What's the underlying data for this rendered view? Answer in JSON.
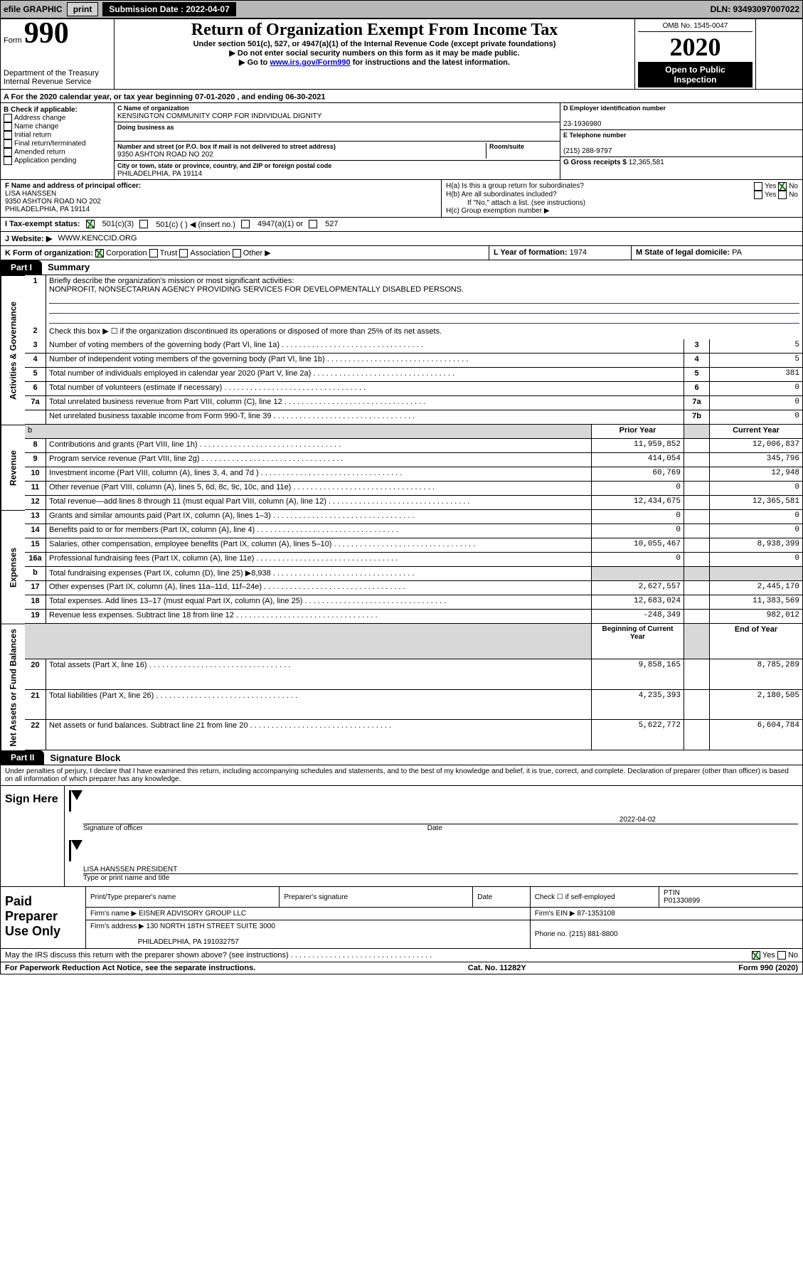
{
  "topbar": {
    "efile": "efile GRAPHIC",
    "print": "print",
    "subLabel": "Submission Date : 2022-04-07",
    "dln": "DLN: 93493097007022"
  },
  "header": {
    "formWord": "Form",
    "formNum": "990",
    "dept1": "Department of the Treasury",
    "dept2": "Internal Revenue Service",
    "title": "Return of Organization Exempt From Income Tax",
    "sub1": "Under section 501(c), 527, or 4947(a)(1) of the Internal Revenue Code (except private foundations)",
    "sub2": "Do not enter social security numbers on this form as it may be made public.",
    "sub3a": "Go to ",
    "sub3link": "www.irs.gov/Form990",
    "sub3b": " for instructions and the latest information.",
    "omb": "OMB No. 1545-0047",
    "year": "2020",
    "inspect1": "Open to Public",
    "inspect2": "Inspection"
  },
  "periodLine": "For the 2020 calendar year, or tax year beginning 07-01-2020   , and ending 06-30-2021",
  "boxB": {
    "title": "B Check if applicable:",
    "opts": [
      "Address change",
      "Name change",
      "Initial return",
      "Final return/terminated",
      "Amended return",
      "Application pending"
    ]
  },
  "boxC": {
    "nameLbl": "C Name of organization",
    "name": "KENSINGTON COMMUNITY CORP FOR INDIVIDUAL DIGNITY",
    "dbaLbl": "Doing business as",
    "addrLbl": "Number and street (or P.O. box if mail is not delivered to street address)",
    "roomLbl": "Room/suite",
    "addr": "9350 ASHTON ROAD NO 202",
    "cityLbl": "City or town, state or province, country, and ZIP or foreign postal code",
    "city": "PHILADELPHIA, PA  19114"
  },
  "boxD": {
    "lbl": "D Employer identification number",
    "val": "23-1936980"
  },
  "boxE": {
    "lbl": "E Telephone number",
    "val": "(215) 288-9797"
  },
  "boxG": {
    "lbl": "G Gross receipts $",
    "val": "12,365,581"
  },
  "boxF": {
    "lbl": "F  Name and address of principal officer:",
    "name": "LISA HANSSEN",
    "addr1": "9350 ASHTON ROAD NO 202",
    "addr2": "PHILADELPHIA, PA  19114"
  },
  "boxH": {
    "ha": "H(a)  Is this a group return for subordinates?",
    "hb": "H(b)  Are all subordinates included?",
    "hbNote": "If \"No,\" attach a list. (see instructions)",
    "hc": "H(c)  Group exemption number ▶",
    "yes": "Yes",
    "no": "No"
  },
  "rowI": {
    "lbl": "I    Tax-exempt status:",
    "o1": "501(c)(3)",
    "o2": "501(c) (   ) ◀ (insert no.)",
    "o3": "4947(a)(1) or",
    "o4": "527"
  },
  "rowJ": {
    "lbl": "J   Website: ▶",
    "val": "WWW.KENCCID.ORG"
  },
  "rowK": {
    "lbl": "K Form of organization:",
    "o1": "Corporation",
    "o2": "Trust",
    "o3": "Association",
    "o4": "Other ▶"
  },
  "rowL": {
    "lbl": "L Year of formation:",
    "val": "1974"
  },
  "rowM": {
    "lbl": "M State of legal domicile:",
    "val": "PA"
  },
  "part1": {
    "tab": "Part I",
    "title": "Summary"
  },
  "summary": {
    "q1": "Briefly describe the organization's mission or most significant activities:",
    "q1ans": "NONPROFIT, NONSECTARIAN AGENCY PROVIDING SERVICES FOR DEVELOPMENTALLY DISABLED PERSONS.",
    "q2": "Check this box ▶ ☐  if the organization discontinued its operations or disposed of more than 25% of its net assets.",
    "rows": [
      {
        "n": "3",
        "t": "Number of voting members of the governing body (Part VI, line 1a)",
        "c": "3",
        "v": "5"
      },
      {
        "n": "4",
        "t": "Number of independent voting members of the governing body (Part VI, line 1b)",
        "c": "4",
        "v": "5"
      },
      {
        "n": "5",
        "t": "Total number of individuals employed in calendar year 2020 (Part V, line 2a)",
        "c": "5",
        "v": "381"
      },
      {
        "n": "6",
        "t": "Total number of volunteers (estimate if necessary)",
        "c": "6",
        "v": "0"
      },
      {
        "n": "7a",
        "t": "Total unrelated business revenue from Part VIII, column (C), line 12",
        "c": "7a",
        "v": "0"
      },
      {
        "n": "",
        "t": "Net unrelated business taxable income from Form 990-T, line 39",
        "c": "7b",
        "v": "0"
      }
    ],
    "hdrPrior": "Prior Year",
    "hdrCurr": "Current Year",
    "rev": [
      {
        "n": "8",
        "t": "Contributions and grants (Part VIII, line 1h)",
        "p": "11,959,852",
        "c": "12,006,837"
      },
      {
        "n": "9",
        "t": "Program service revenue (Part VIII, line 2g)",
        "p": "414,054",
        "c": "345,796"
      },
      {
        "n": "10",
        "t": "Investment income (Part VIII, column (A), lines 3, 4, and 7d )",
        "p": "60,769",
        "c": "12,948"
      },
      {
        "n": "11",
        "t": "Other revenue (Part VIII, column (A), lines 5, 6d, 8c, 9c, 10c, and 11e)",
        "p": "0",
        "c": "0"
      },
      {
        "n": "12",
        "t": "Total revenue—add lines 8 through 11 (must equal Part VIII, column (A), line 12)",
        "p": "12,434,675",
        "c": "12,365,581"
      }
    ],
    "exp": [
      {
        "n": "13",
        "t": "Grants and similar amounts paid (Part IX, column (A), lines 1–3)",
        "p": "0",
        "c": "0"
      },
      {
        "n": "14",
        "t": "Benefits paid to or for members (Part IX, column (A), line 4)",
        "p": "0",
        "c": "0"
      },
      {
        "n": "15",
        "t": "Salaries, other compensation, employee benefits (Part IX, column (A), lines 5–10)",
        "p": "10,055,467",
        "c": "8,938,399"
      },
      {
        "n": "16a",
        "t": "Professional fundraising fees (Part IX, column (A), line 11e)",
        "p": "0",
        "c": "0"
      },
      {
        "n": "b",
        "t": "Total fundraising expenses (Part IX, column (D), line 25) ▶8,938",
        "p": "",
        "c": "",
        "shade": true
      },
      {
        "n": "17",
        "t": "Other expenses (Part IX, column (A), lines 11a–11d, 11f–24e)",
        "p": "2,627,557",
        "c": "2,445,170"
      },
      {
        "n": "18",
        "t": "Total expenses. Add lines 13–17 (must equal Part IX, column (A), line 25)",
        "p": "12,683,024",
        "c": "11,383,569"
      },
      {
        "n": "19",
        "t": "Revenue less expenses. Subtract line 18 from line 12",
        "p": "-248,349",
        "c": "982,012"
      }
    ],
    "hdrBeg": "Beginning of Current Year",
    "hdrEnd": "End of Year",
    "net": [
      {
        "n": "20",
        "t": "Total assets (Part X, line 16)",
        "p": "9,858,165",
        "c": "8,785,289"
      },
      {
        "n": "21",
        "t": "Total liabilities (Part X, line 26)",
        "p": "4,235,393",
        "c": "2,180,505"
      },
      {
        "n": "22",
        "t": "Net assets or fund balances. Subtract line 21 from line 20",
        "p": "5,622,772",
        "c": "6,604,784"
      }
    ],
    "vlab1": "Activities & Governance",
    "vlab2": "Revenue",
    "vlab3": "Expenses",
    "vlab4": "Net Assets or Fund Balances"
  },
  "part2": {
    "tab": "Part II",
    "title": "Signature Block"
  },
  "penalty": "Under penalties of perjury, I declare that I have examined this return, including accompanying schedules and statements, and to the best of my knowledge and belief, it is true, correct, and complete. Declaration of preparer (other than officer) is based on all information of which preparer has any knowledge.",
  "sign": {
    "lbl": "Sign Here",
    "sigOf": "Signature of officer",
    "date": "Date",
    "dateVal": "2022-04-02",
    "name": "LISA HANSSEN  PRESIDENT",
    "typeLbl": "Type or print name and title"
  },
  "prep": {
    "lbl": "Paid Preparer Use Only",
    "h1": "Print/Type preparer's name",
    "h2": "Preparer's signature",
    "h3": "Date",
    "h4": "Check ☐ if self-employed",
    "h5": "PTIN",
    "ptin": "P01330899",
    "firmLbl": "Firm's name    ▶",
    "firm": "EISNER ADVISORY GROUP LLC",
    "einLbl": "Firm's EIN ▶",
    "ein": "87-1353108",
    "addrLbl": "Firm's address ▶",
    "addr1": "130 NORTH 18TH STREET SUITE 3000",
    "addr2": "PHILADELPHIA, PA  191032757",
    "phoneLbl": "Phone no.",
    "phone": "(215) 881-8800"
  },
  "discuss": "May the IRS discuss this return with the preparer shown above? (see instructions)",
  "footer": {
    "l": "For Paperwork Reduction Act Notice, see the separate instructions.",
    "c": "Cat. No. 11282Y",
    "r": "Form 990 (2020)"
  }
}
